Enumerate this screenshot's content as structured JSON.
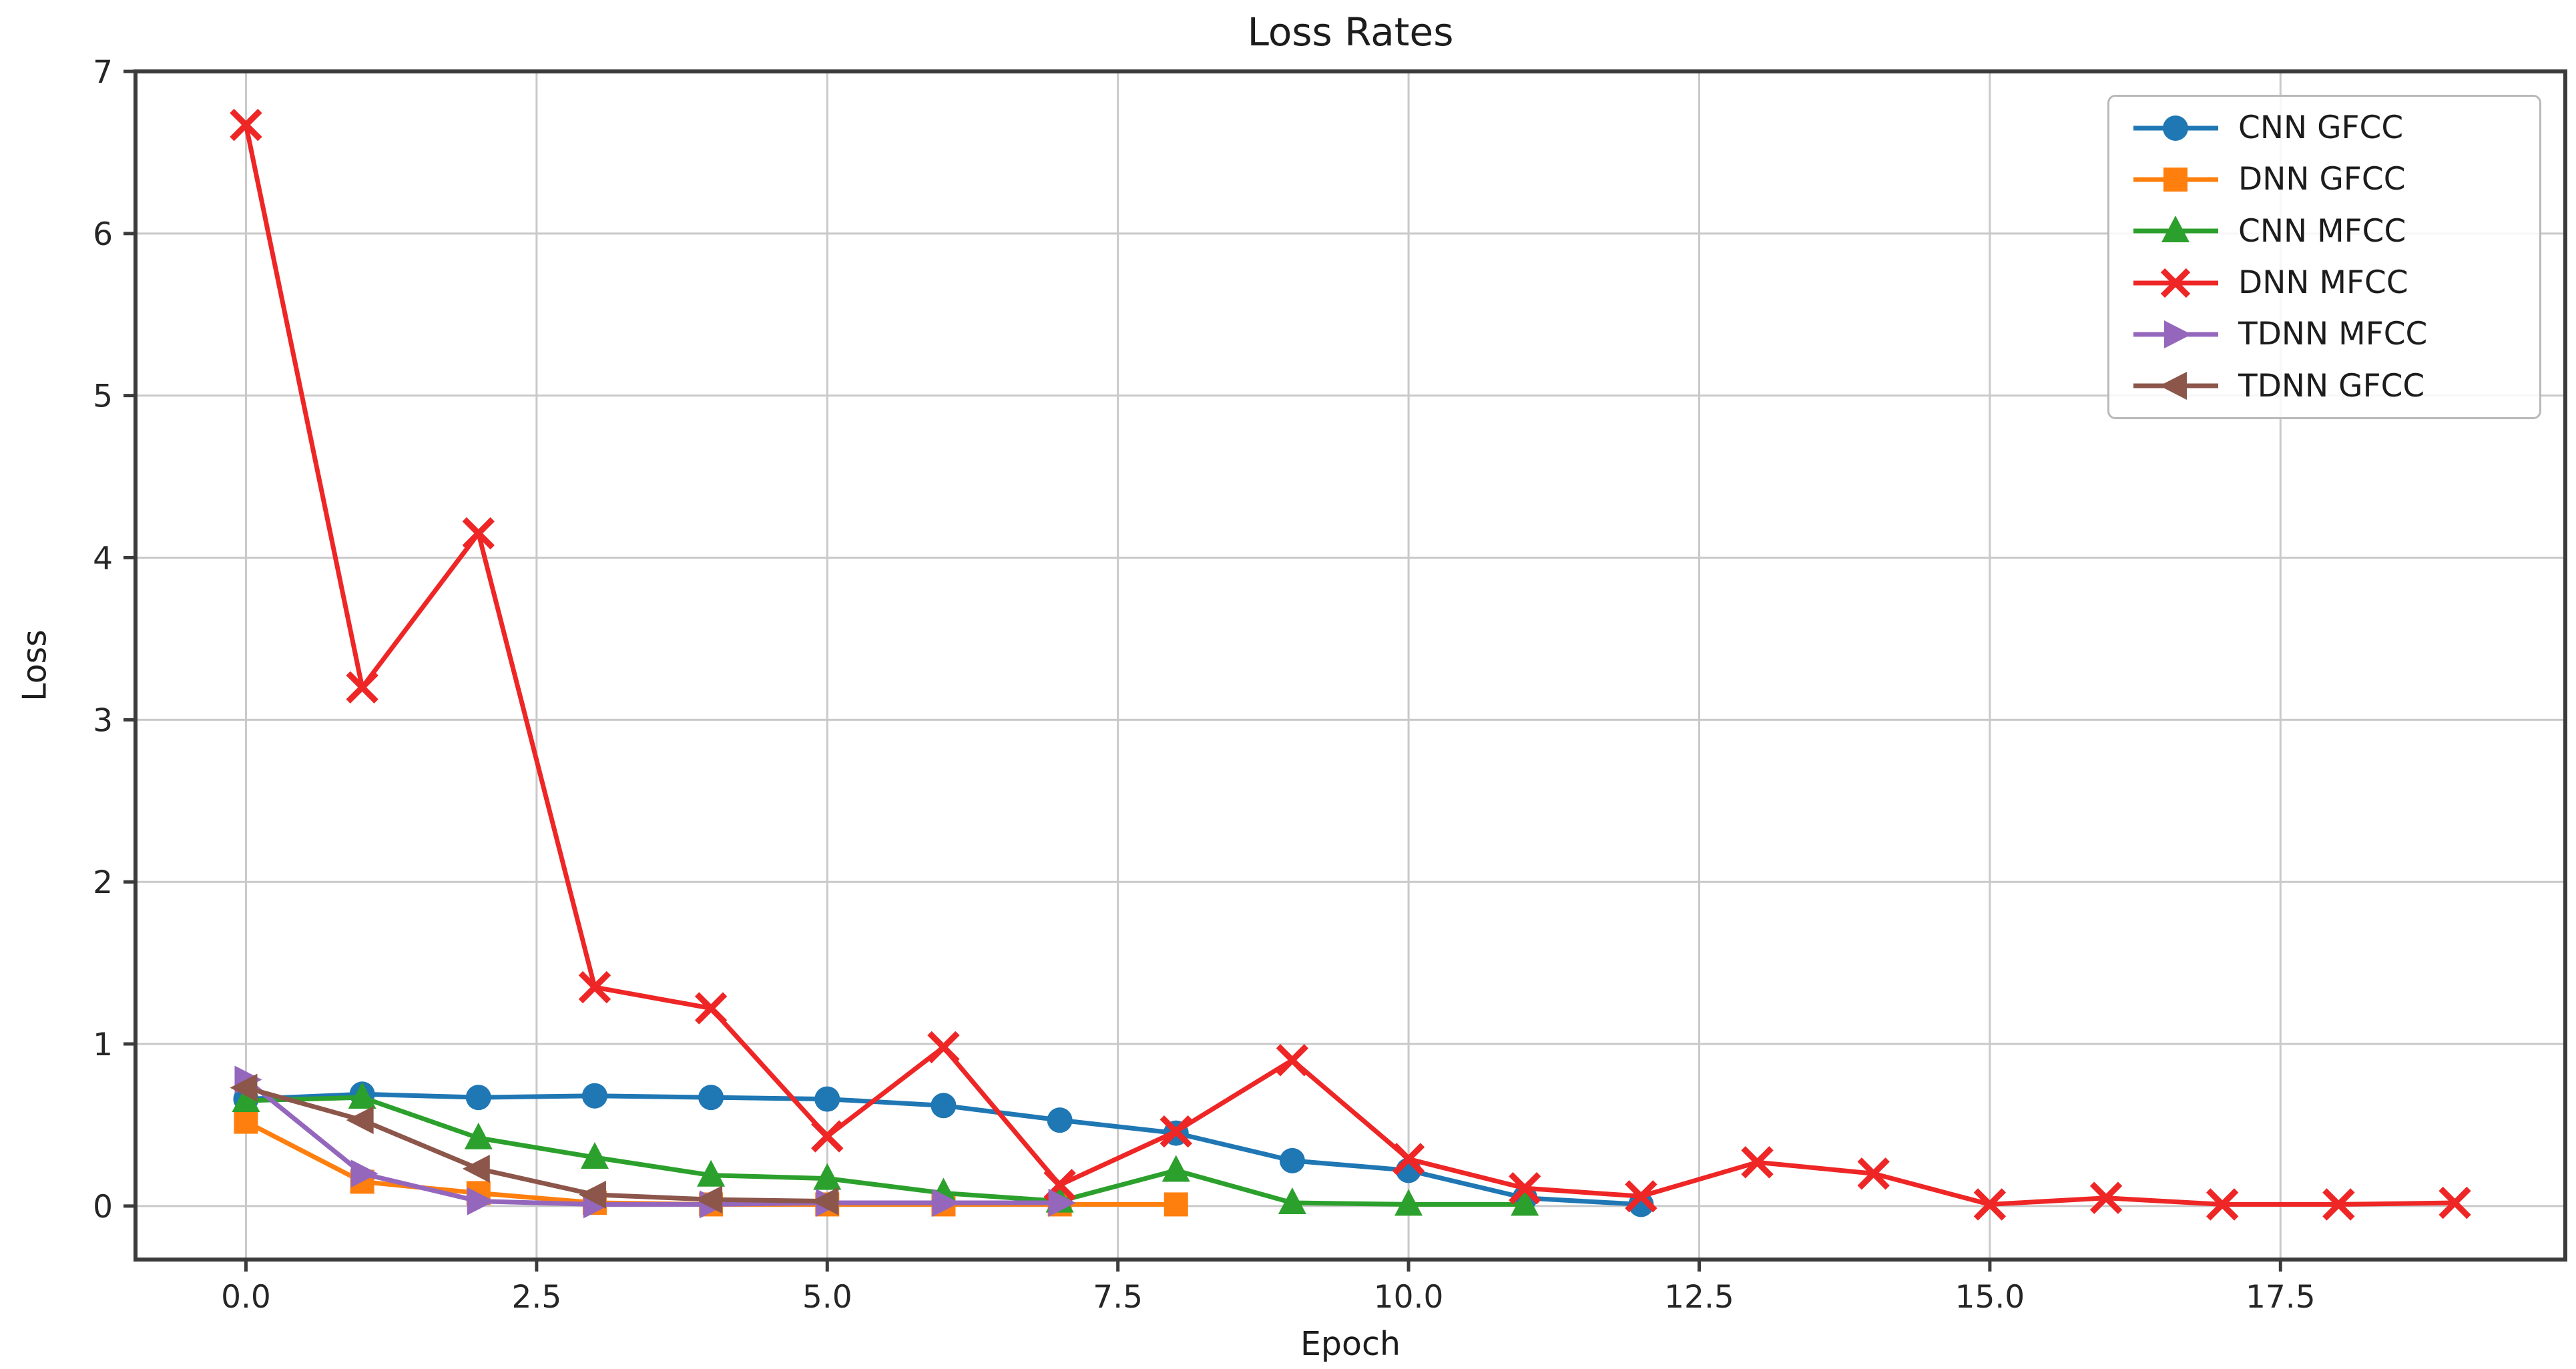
{
  "chart_data": {
    "type": "line",
    "title": "Loss Rates",
    "xlabel": "Epoch",
    "ylabel": "Loss",
    "xlim": [
      -0.95,
      19.95
    ],
    "ylim": [
      -0.33,
      7.0
    ],
    "grid": true,
    "legend_position": "upper right",
    "xticks": {
      "values": [
        0,
        2.5,
        5,
        7.5,
        10,
        12.5,
        15,
        17.5
      ],
      "labels": [
        "0.0",
        "2.5",
        "5.0",
        "7.5",
        "10.0",
        "12.5",
        "15.0",
        "17.5"
      ]
    },
    "yticks": {
      "values": [
        0,
        1,
        2,
        3,
        4,
        5,
        6,
        7
      ],
      "labels": [
        "0",
        "1",
        "2",
        "3",
        "4",
        "5",
        "6",
        "7"
      ]
    },
    "series": [
      {
        "name": "CNN GFCC",
        "color": "#1f77b4",
        "marker": "circle",
        "x": [
          0,
          1,
          2,
          3,
          4,
          5,
          6,
          7,
          8,
          9,
          10,
          11,
          12
        ],
        "y": [
          0.66,
          0.69,
          0.67,
          0.68,
          0.67,
          0.66,
          0.62,
          0.53,
          0.45,
          0.28,
          0.22,
          0.05,
          0.01
        ]
      },
      {
        "name": "DNN GFCC",
        "color": "#ff7f0e",
        "marker": "square",
        "x": [
          0,
          1,
          2,
          3,
          4,
          5,
          6,
          7,
          8
        ],
        "y": [
          0.52,
          0.15,
          0.08,
          0.02,
          0.01,
          0.01,
          0.01,
          0.01,
          0.01
        ]
      },
      {
        "name": "CNN MFCC",
        "color": "#2ca02c",
        "marker": "triangle-up",
        "x": [
          0,
          1,
          2,
          3,
          4,
          5,
          6,
          7,
          8,
          9,
          10,
          11
        ],
        "y": [
          0.65,
          0.67,
          0.42,
          0.3,
          0.19,
          0.17,
          0.08,
          0.03,
          0.22,
          0.02,
          0.01,
          0.01
        ]
      },
      {
        "name": "DNN MFCC",
        "color": "#ee2626",
        "marker": "x",
        "x": [
          0,
          1,
          2,
          3,
          4,
          5,
          6,
          7,
          8,
          9,
          10,
          11,
          12,
          13,
          14,
          15,
          16,
          17,
          18,
          19
        ],
        "y": [
          6.67,
          3.2,
          4.15,
          1.35,
          1.22,
          0.43,
          0.98,
          0.13,
          0.46,
          0.9,
          0.29,
          0.11,
          0.06,
          0.27,
          0.2,
          0.01,
          0.05,
          0.01,
          0.01,
          0.02
        ]
      },
      {
        "name": "TDNN MFCC",
        "color": "#9467bd",
        "marker": "triangle-right",
        "x": [
          0,
          1,
          2,
          3,
          4,
          5,
          6,
          7
        ],
        "y": [
          0.78,
          0.2,
          0.03,
          0.01,
          0.01,
          0.02,
          0.02,
          0.02
        ]
      },
      {
        "name": "TDNN GFCC",
        "color": "#8c564b",
        "marker": "triangle-left",
        "x": [
          0,
          1,
          2,
          3,
          4,
          5
        ],
        "y": [
          0.73,
          0.53,
          0.23,
          0.07,
          0.04,
          0.03
        ]
      }
    ]
  }
}
